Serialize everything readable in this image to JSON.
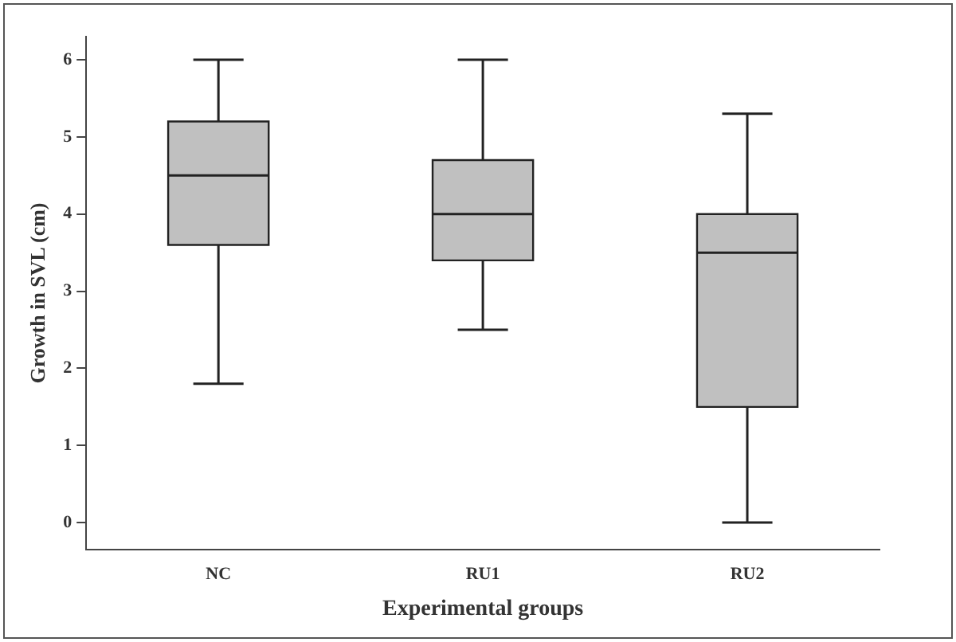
{
  "chart_data": {
    "type": "box",
    "xlabel": "Experimental groups",
    "ylabel": "Growth in SVL (cm)",
    "categories": [
      "NC",
      "RU1",
      "RU2"
    ],
    "boxes": [
      {
        "low": 1.8,
        "q1": 3.6,
        "median": 4.5,
        "q3": 5.2,
        "high": 6
      },
      {
        "low": 2.5,
        "q1": 3.4,
        "median": 4.0,
        "q3": 4.7,
        "high": 6
      },
      {
        "low": 0,
        "q1": 1.5,
        "median": 3.5,
        "q3": 4.0,
        "high": 5.3
      }
    ],
    "color": "#c0c0c0",
    "ylim": [
      -0.35,
      6.3
    ],
    "yticks": [
      0,
      1,
      2,
      3,
      4,
      5,
      6
    ],
    "grid": false,
    "legend": false
  }
}
